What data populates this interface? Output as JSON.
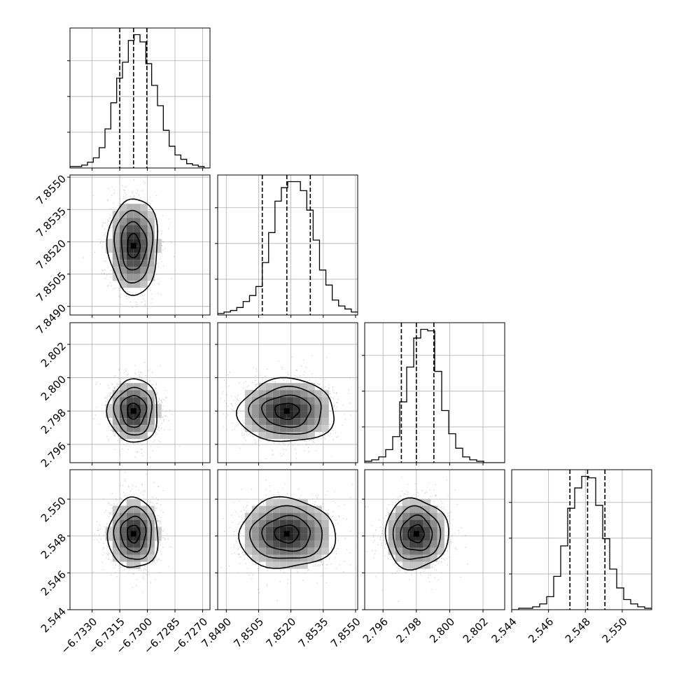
{
  "chart_data": {
    "type": "corner",
    "parameters": [
      {
        "range": [
          -6.7342,
          -6.7266
        ],
        "ticks": [
          -6.733,
          -6.7315,
          -6.73,
          -6.7285,
          -6.727
        ],
        "tick_labels": [
          "−6.7330",
          "−6.7315",
          "−6.7300",
          "−6.7285",
          "−6.7270"
        ],
        "quantiles": [
          -6.7315,
          -6.73075,
          -6.73003
        ],
        "median": -6.73075,
        "sigma": 0.00068,
        "hist_bins": [
          -6.7342,
          -6.7266
        ],
        "hist_counts": [
          1,
          1,
          2,
          4,
          7,
          14,
          27,
          45,
          62,
          73,
          88,
          92,
          87,
          72,
          57,
          43,
          26,
          15,
          9,
          6,
          3,
          2,
          1,
          0
        ]
      },
      {
        "range": [
          7.8486,
          7.8551
        ],
        "ticks": [
          7.849,
          7.8505,
          7.852,
          7.8535,
          7.855
        ],
        "tick_labels": [
          "7.8490",
          "7.8505",
          "7.8520",
          "7.8535",
          "7.8550"
        ],
        "quantiles": [
          7.85067,
          7.85181,
          7.8529
        ],
        "median": 7.85181,
        "sigma": 0.00112,
        "hist_bins": [
          7.8486,
          7.8551
        ],
        "hist_counts": [
          1,
          2,
          3,
          5,
          9,
          13,
          19,
          35,
          55,
          76,
          85,
          89,
          89,
          83,
          70,
          50,
          30,
          20,
          10,
          6,
          4,
          2
        ]
      },
      {
        "range": [
          2.7949,
          2.8033
        ],
        "ticks": [
          2.796,
          2.798,
          2.8,
          2.802
        ],
        "tick_labels": [
          "2.796",
          "2.798",
          "2.800",
          "2.802"
        ],
        "quantiles": [
          2.7971,
          2.798,
          2.79905
        ],
        "median": 2.798,
        "sigma": 0.00095,
        "hist_bins": [
          2.7949,
          2.8033
        ],
        "hist_counts": [
          1,
          2,
          4,
          9,
          18,
          42,
          66,
          86,
          92,
          91,
          63,
          36,
          20,
          10,
          4,
          2,
          1,
          0,
          0,
          0
        ]
      },
      {
        "range": [
          2.544,
          2.5516
        ],
        "ticks": [
          2.544,
          2.546,
          2.548,
          2.55
        ],
        "tick_labels": [
          "2.544",
          "2.546",
          "2.548",
          "2.550"
        ],
        "quantiles": [
          2.54716,
          2.54812,
          2.54906
        ],
        "median": 2.54812,
        "sigma": 0.00095,
        "hist_bins": [
          2.544,
          2.5516
        ],
        "hist_counts": [
          0,
          1,
          1,
          2,
          4,
          9,
          23,
          44,
          70,
          84,
          92,
          91,
          72,
          49,
          28,
          15,
          7,
          4,
          2,
          1
        ]
      }
    ],
    "y_tick_params": [
      1,
      2,
      3
    ],
    "grid": true,
    "contour_levels": 4
  }
}
